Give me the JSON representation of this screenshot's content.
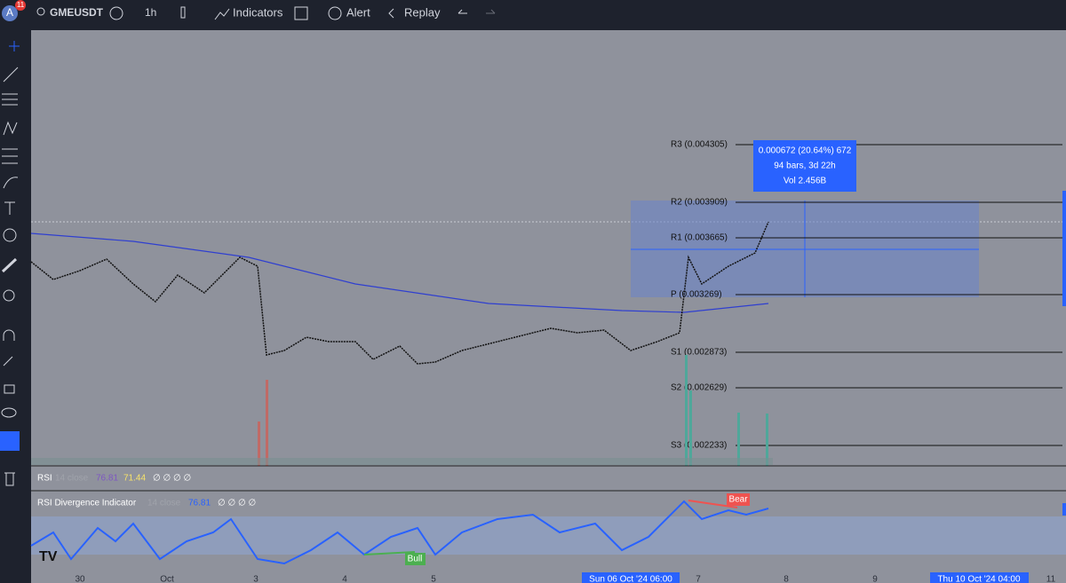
{
  "toolbar": {
    "avatar": "A",
    "badge": "11",
    "symbol": "GMEUSDT",
    "interval": "1h",
    "indicators": "Indicators",
    "alert": "Alert",
    "replay": "Replay"
  },
  "pivots": [
    "R3 (0.004305)",
    "R2 (0.003909)",
    "R1 (0.003665)",
    "P (0.003269)",
    "S1 (0.002873)",
    "S2 (0.002629)",
    "S3 (0.002233)"
  ],
  "measure": {
    "line1": "0.000672 (20.64%) 672",
    "line2": "94 bars, 3d 22h",
    "line3": "Vol 2.456B"
  },
  "rsi": {
    "name": "RSI",
    "params": "14 close",
    "value1": "76.81",
    "value2": "71.44",
    "empty": "∅ ∅ ∅ ∅"
  },
  "rsi_divergence": {
    "name": "RSI Divergence Indicator",
    "params": "14 close",
    "value": "76.81",
    "empty": "∅ ∅ ∅ ∅",
    "bear": "Bear",
    "bull": "Bull"
  },
  "time_axis": {
    "labels": [
      "30",
      "Oct",
      "3",
      "4",
      "5",
      "7",
      "8",
      "9",
      "11"
    ],
    "crosshair_start": "Sun 06 Oct '24  06:00",
    "crosshair_end": "Thu 10 Oct '24  04:00"
  }
}
